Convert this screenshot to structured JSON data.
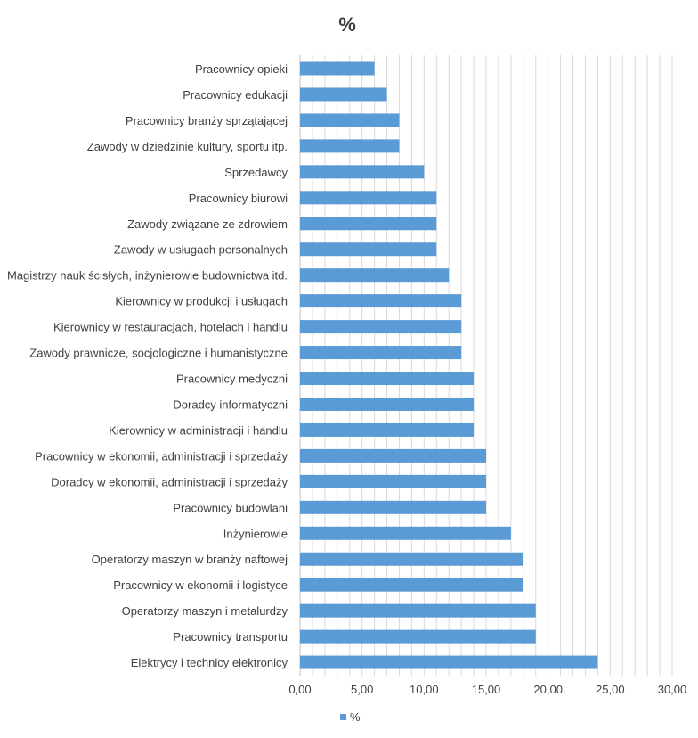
{
  "chart_data": {
    "type": "bar",
    "orientation": "horizontal",
    "title": "%",
    "xlabel": "",
    "ylabel": "",
    "xlim": [
      0,
      30
    ],
    "x_ticks": [
      "0,00",
      "5,00",
      "10,00",
      "15,00",
      "20,00",
      "25,00",
      "30,00"
    ],
    "grid": "vertical",
    "legend_position": "bottom",
    "bar_color": "#5b9bd5",
    "categories": [
      "Pracownicy opieki",
      "Pracownicy edukacji",
      "Pracownicy branży sprzątającej",
      "Zawody w dziedzinie kultury, sportu itp.",
      "Sprzedawcy",
      "Pracownicy biurowi",
      "Zawody związane ze zdrowiem",
      "Zawody w usługach personalnych",
      "Magistrzy nauk ścisłych, inżynierowie budownictwa itd.",
      "Kierownicy w produkcji i usługach",
      "Kierownicy w restauracjach, hotelach i handlu",
      "Zawody prawnicze, socjologiczne i humanistyczne",
      "Pracownicy medyczni",
      "Doradcy informatyczni",
      "Kierownicy w administracji i handlu",
      "Pracownicy w ekonomii, administracji i sprzedaży",
      "Doradcy w ekonomii, administracji i sprzedaży",
      "Pracownicy budowlani",
      "Inżynierowie",
      "Operatorzy maszyn w branży naftowej",
      "Pracownicy w ekonomii i logistyce",
      "Operatorzy maszyn i metalurdzy",
      "Pracownicy transportu",
      "Elektrycy i technicy elektronicy"
    ],
    "series": [
      {
        "name": "%",
        "values": [
          6,
          7,
          8,
          8,
          10,
          11,
          11,
          11,
          12,
          13,
          13,
          13,
          14,
          14,
          14,
          15,
          15,
          15,
          17,
          18,
          18,
          19,
          19,
          24
        ]
      }
    ]
  }
}
